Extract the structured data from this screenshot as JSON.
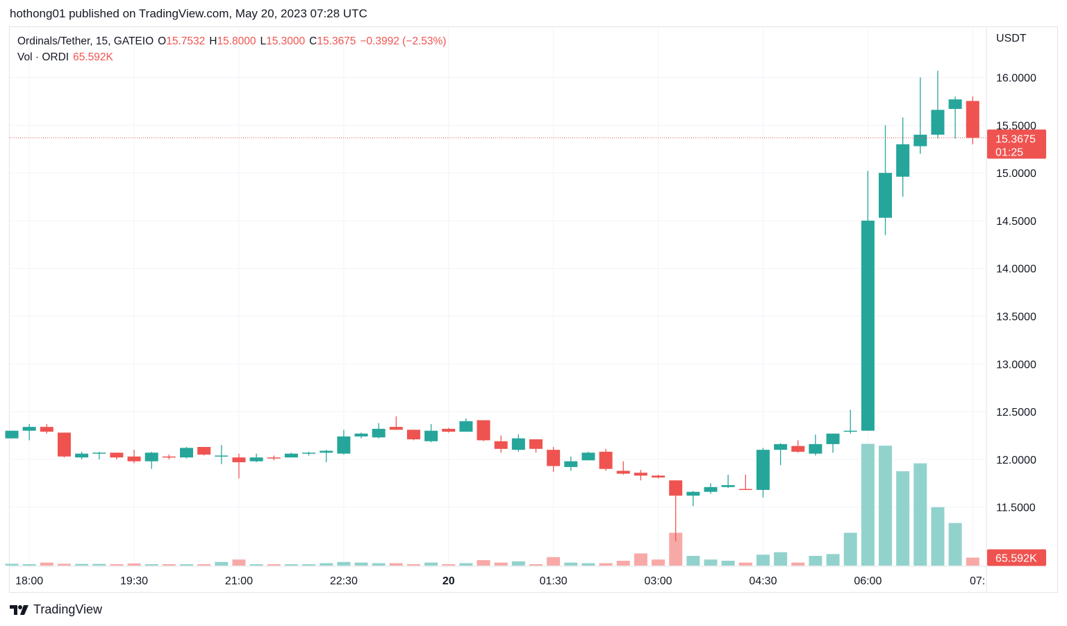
{
  "header": {
    "published": "hothong01 published on TradingView.com, May 20, 2023 07:28 UTC"
  },
  "legend": {
    "symbol": "Ordinals/Tether, 15, GATEIO",
    "o_label": "O",
    "o_value": "15.7532",
    "h_label": "H",
    "h_value": "15.8000",
    "l_label": "L",
    "l_value": "15.3000",
    "c_label": "C",
    "c_value": "15.3675",
    "change": "−0.3992 (−2.53%)",
    "vol_label": "Vol · ORDI",
    "vol_value": "65.592K"
  },
  "footer": {
    "brand": "TradingView"
  },
  "colors": {
    "up": "#26a69a",
    "down": "#ef5350",
    "vol_up": "#92d2cc",
    "vol_down": "#f7a9a7",
    "grid": "#f0f3fa",
    "text": "#131722"
  },
  "chart_data": {
    "type": "candlestick",
    "symbol": "Ordinals/Tether, 15, GATEIO",
    "currency": "USDT",
    "x_ticks": [
      "18:00",
      "19:30",
      "21:00",
      "22:30",
      "20",
      "01:30",
      "03:00",
      "04:30",
      "06:00",
      "07:"
    ],
    "x_tick_index": [
      1,
      7,
      13,
      19,
      25,
      31,
      37,
      43,
      49,
      55
    ],
    "y_ticks": [
      "16.0000",
      "15.5000",
      "15.0000",
      "14.5000",
      "14.0000",
      "13.5000",
      "13.0000",
      "12.5000",
      "12.0000",
      "11.5000"
    ],
    "y_tick_values": [
      16.0,
      15.5,
      15.0,
      14.5,
      14.0,
      13.5,
      13.0,
      12.5,
      12.0,
      11.5
    ],
    "ylim": [
      10.88,
      16.52
    ],
    "last_price": {
      "value": 15.3675,
      "label": "15.3675",
      "countdown": "01:25"
    },
    "last_volume": {
      "value": 65.592,
      "label": "65.592K"
    },
    "volume_max": 1100,
    "candles": [
      [
        12.22,
        12.3,
        12.22,
        12.3,
        15
      ],
      [
        12.3,
        12.37,
        12.2,
        12.34,
        12
      ],
      [
        12.34,
        12.37,
        12.27,
        12.29,
        25
      ],
      [
        12.28,
        12.28,
        12.02,
        12.03,
        15
      ],
      [
        12.02,
        12.08,
        12.0,
        12.06,
        14
      ],
      [
        12.06,
        12.08,
        12.0,
        12.07,
        14
      ],
      [
        12.07,
        12.07,
        12.0,
        12.02,
        12
      ],
      [
        12.03,
        12.1,
        11.96,
        11.98,
        18
      ],
      [
        11.98,
        12.08,
        11.9,
        12.07,
        12
      ],
      [
        12.03,
        12.05,
        12.0,
        12.02,
        10
      ],
      [
        12.02,
        12.13,
        12.01,
        12.12,
        10
      ],
      [
        12.13,
        12.13,
        12.04,
        12.05,
        10
      ],
      [
        12.04,
        12.15,
        11.95,
        12.04,
        30
      ],
      [
        12.02,
        12.06,
        11.8,
        11.97,
        50
      ],
      [
        11.98,
        12.06,
        11.97,
        12.02,
        10
      ],
      [
        12.02,
        12.04,
        11.99,
        12.01,
        8
      ],
      [
        12.02,
        12.07,
        12.02,
        12.06,
        8
      ],
      [
        12.06,
        12.08,
        12.04,
        12.07,
        10
      ],
      [
        12.07,
        12.1,
        11.97,
        12.09,
        20
      ],
      [
        12.06,
        12.31,
        12.05,
        12.24,
        30
      ],
      [
        12.24,
        12.28,
        12.22,
        12.27,
        25
      ],
      [
        12.23,
        12.38,
        12.22,
        12.32,
        20
      ],
      [
        12.34,
        12.45,
        12.31,
        12.31,
        20
      ],
      [
        12.31,
        12.31,
        12.2,
        12.21,
        10
      ],
      [
        12.19,
        12.37,
        12.18,
        12.3,
        25
      ],
      [
        12.32,
        12.33,
        12.28,
        12.29,
        10
      ],
      [
        12.29,
        12.43,
        12.29,
        12.4,
        20
      ],
      [
        12.41,
        12.41,
        12.19,
        12.2,
        45
      ],
      [
        12.19,
        12.25,
        12.07,
        12.11,
        25
      ],
      [
        12.1,
        12.26,
        12.08,
        12.22,
        35
      ],
      [
        12.21,
        12.21,
        12.07,
        12.11,
        10
      ],
      [
        12.1,
        12.13,
        11.87,
        11.93,
        70
      ],
      [
        11.92,
        12.03,
        11.88,
        11.98,
        25
      ],
      [
        11.99,
        12.08,
        11.99,
        12.07,
        20
      ],
      [
        12.08,
        12.11,
        11.88,
        11.9,
        20
      ],
      [
        11.88,
        11.98,
        11.84,
        11.85,
        40
      ],
      [
        11.86,
        11.89,
        11.78,
        11.83,
        100
      ],
      [
        11.83,
        11.84,
        11.8,
        11.81,
        50
      ],
      [
        11.78,
        11.78,
        11.14,
        11.62,
        270
      ],
      [
        11.62,
        11.67,
        11.51,
        11.66,
        80
      ],
      [
        11.66,
        11.75,
        11.64,
        11.71,
        50
      ],
      [
        11.71,
        11.84,
        11.7,
        11.73,
        40
      ],
      [
        11.69,
        11.84,
        11.68,
        11.68,
        25
      ],
      [
        11.68,
        12.12,
        11.6,
        12.1,
        90
      ],
      [
        12.1,
        12.17,
        11.94,
        12.16,
        110
      ],
      [
        12.14,
        12.2,
        12.07,
        12.08,
        25
      ],
      [
        12.06,
        12.26,
        12.04,
        12.16,
        80
      ],
      [
        12.16,
        12.27,
        12.07,
        12.27,
        95
      ],
      [
        12.29,
        12.52,
        12.27,
        12.3,
        270
      ],
      [
        12.3,
        15.02,
        12.3,
        14.5,
        1000
      ],
      [
        14.53,
        15.5,
        14.35,
        15.0,
        985
      ],
      [
        14.96,
        15.58,
        14.75,
        15.3,
        775
      ],
      [
        15.28,
        16.0,
        15.2,
        15.4,
        840
      ],
      [
        15.4,
        16.07,
        15.36,
        15.66,
        480
      ],
      [
        15.67,
        15.8,
        15.36,
        15.77,
        350
      ],
      [
        15.7532,
        15.8,
        15.3,
        15.3675,
        65.592
      ]
    ]
  }
}
